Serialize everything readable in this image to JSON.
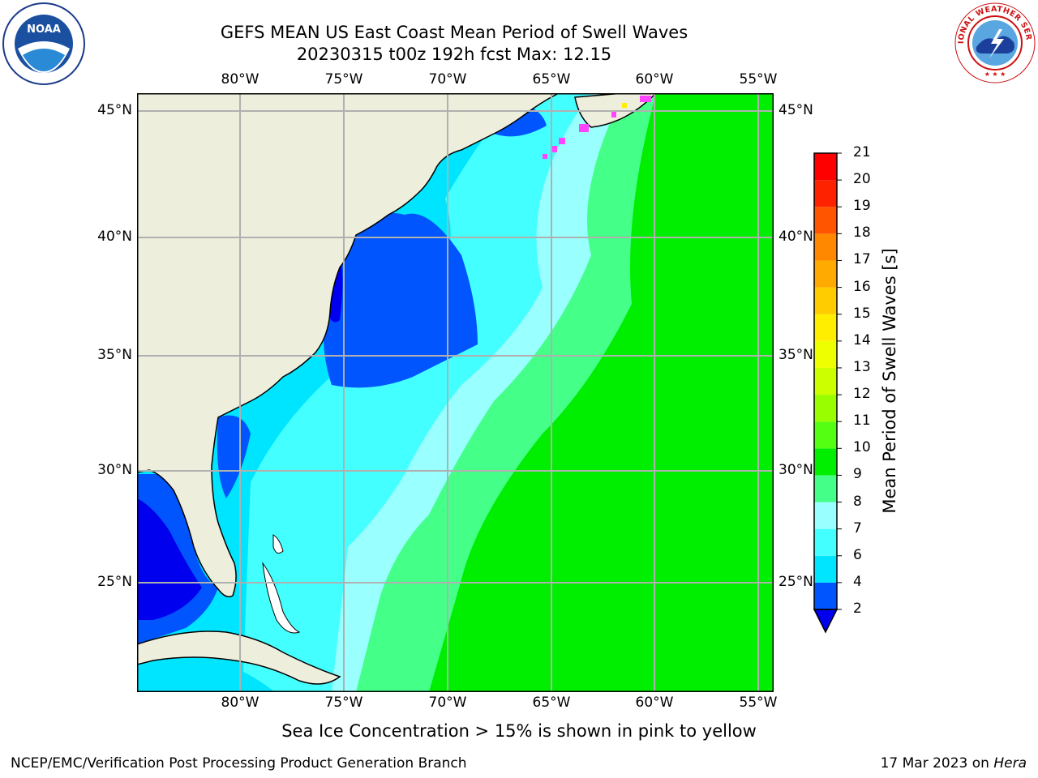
{
  "title": {
    "line1": "GEFS MEAN US East Coast Mean Period of Swell Waves",
    "line2": "20230315 t00z 192h fcst   Max: 12.15"
  },
  "map": {
    "lon_labels": [
      "80°W",
      "75°W",
      "70°W",
      "65°W",
      "60°W",
      "55°W"
    ],
    "lat_labels": [
      "45°N",
      "40°N",
      "35°N",
      "30°N",
      "25°N"
    ],
    "land_color": "#EEEEDD",
    "grid_color": "#B0B0B0"
  },
  "colorbar": {
    "label": "Mean Period of Swell Waves [s]",
    "ticks": [
      "2",
      "4",
      "6",
      "7",
      "8",
      "9",
      "10",
      "11",
      "12",
      "13",
      "14",
      "15",
      "16",
      "17",
      "18",
      "19",
      "20",
      "21"
    ],
    "colors": [
      "#0055FF",
      "#00E5FF",
      "#44FFFF",
      "#99FFFF",
      "#44FF88",
      "#00EE00",
      "#55FF11",
      "#99FF00",
      "#CCFF00",
      "#EEFF00",
      "#FFEE00",
      "#FFCC00",
      "#FFAA00",
      "#FF8800",
      "#FF5500",
      "#FF2200",
      "#FF0000"
    ],
    "under_color": "#0000EE"
  },
  "note": "Sea Ice Concentration > 15% is shown in pink to yellow",
  "footer": {
    "left": "NCEP/EMC/Verification Post Processing Product Generation Branch",
    "right_prefix": "17 Mar 2023 on",
    "right_host": "Hera"
  },
  "logos": {
    "noaa_text": "NOAA",
    "nws_text": "NATIONAL WEATHER SERVICE"
  }
}
